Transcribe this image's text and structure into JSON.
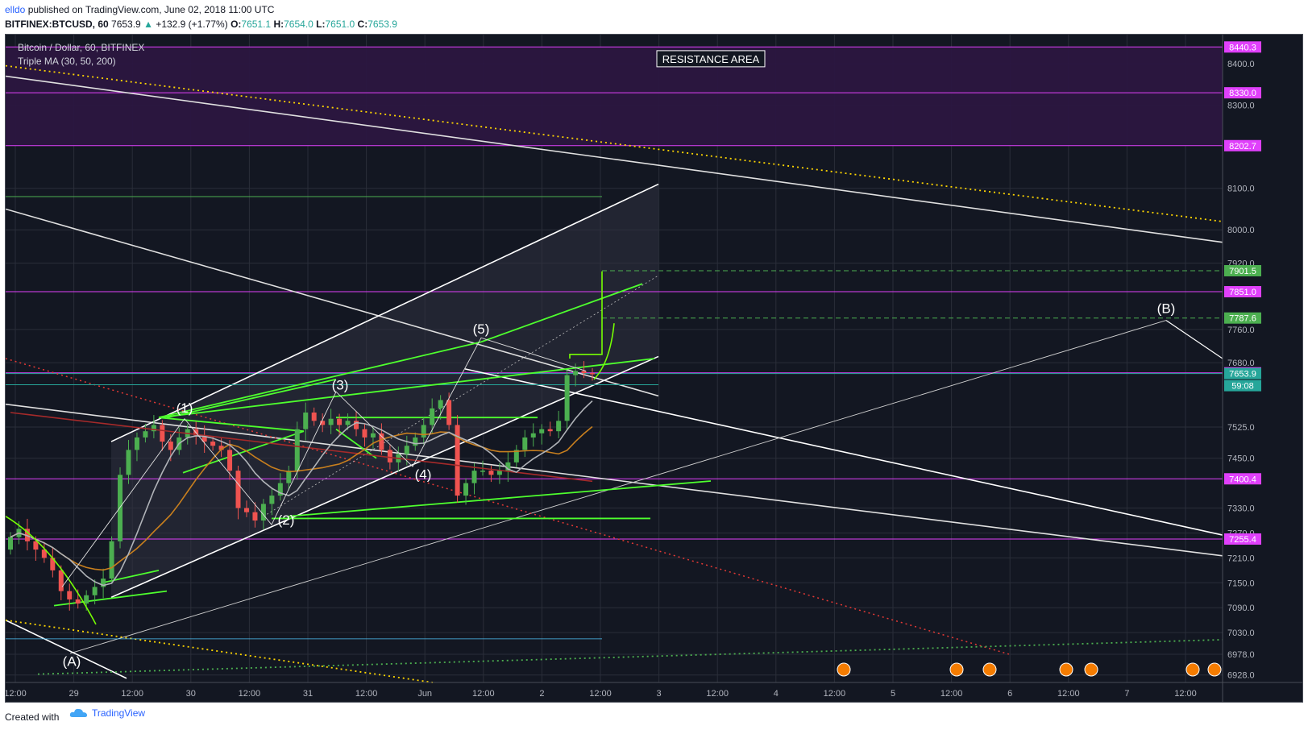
{
  "header": {
    "username": "elldo",
    "published": "published on TradingView.com, June 02, 2018 11:00 UTC",
    "symbol": "BITFINEX:BTCUSD, 60",
    "last": "7653.9",
    "change": "+132.9 (+1.77%)",
    "o_label": "O:",
    "o": "7651.1",
    "h_label": "H:",
    "h": "7654.0",
    "l_label": "L:",
    "l": "7651.0",
    "c_label": "C:",
    "c": "7653.9"
  },
  "legend": {
    "title": "Bitcoin / Dollar, 60, BITFINEX",
    "indicator": "Triple MA (30, 50, 200)"
  },
  "annotations": {
    "resistance": "RESISTANCE AREA",
    "wave_1": "(1)",
    "wave_2": "(2)",
    "wave_3": "(3)",
    "wave_4": "(4)",
    "wave_5": "(5)",
    "wave_A": "(A)",
    "wave_B": "(B)"
  },
  "footer": {
    "created": "Created with",
    "brand": "TradingView"
  },
  "chart_data": {
    "type": "candlestick",
    "title": "Bitcoin / Dollar, 60, BITFINEX",
    "ylim": [
      6910,
      8470
    ],
    "y_ticks": [
      8400,
      8300,
      8100,
      8000,
      7920,
      7760,
      7680,
      7525,
      7450,
      7330,
      7270,
      7210,
      7150,
      7090,
      7030,
      6978,
      6928
    ],
    "x_ticks": [
      "12:00",
      "29",
      "12:00",
      "30",
      "12:00",
      "31",
      "12:00",
      "Jun",
      "12:00",
      "2",
      "12:00",
      "3",
      "12:00",
      "4",
      "12:00",
      "5",
      "12:00",
      "6",
      "12:00",
      "7",
      "12:00"
    ],
    "price_labels": [
      {
        "value": 8440.3,
        "text": "8440.3",
        "color": "#e040fb"
      },
      {
        "value": 8330.0,
        "text": "8330.0",
        "color": "#e040fb"
      },
      {
        "value": 8202.7,
        "text": "8202.7",
        "color": "#e040fb"
      },
      {
        "value": 7901.5,
        "text": "7901.5",
        "color": "#4caf50"
      },
      {
        "value": 7851.0,
        "text": "7851.0",
        "color": "#e040fb"
      },
      {
        "value": 7787.6,
        "text": "7787.6",
        "color": "#4caf50"
      },
      {
        "value": 7655.6,
        "text": "7655.6",
        "color": "#e040fb"
      },
      {
        "value": 7653.9,
        "text": "7653.9",
        "color": "#26a69a"
      },
      {
        "value": 7400.4,
        "text": "7400.4",
        "color": "#e040fb"
      },
      {
        "value": 7255.4,
        "text": "7255.4",
        "color": "#e040fb"
      }
    ],
    "countdown": "59:08",
    "resistance_zone": [
      8202.7,
      8440.3
    ],
    "candles_close": [
      7260,
      7280,
      7250,
      7230,
      7210,
      7180,
      7130,
      7110,
      7100,
      7120,
      7140,
      7160,
      7250,
      7410,
      7470,
      7500,
      7515,
      7530,
      7490,
      7470,
      7500,
      7520,
      7505,
      7490,
      7480,
      7470,
      7420,
      7330,
      7320,
      7300,
      7340,
      7360,
      7390,
      7420,
      7520,
      7560,
      7540,
      7530,
      7545,
      7530,
      7540,
      7520,
      7500,
      7510,
      7470,
      7440,
      7460,
      7480,
      7500,
      7530,
      7570,
      7590,
      7530,
      7360,
      7390,
      7420,
      7420,
      7410,
      7420,
      7440,
      7470,
      7500,
      7510,
      7520,
      7515,
      7540,
      7650,
      7660,
      7655,
      7653.9
    ],
    "series": [
      {
        "name": "MA 30",
        "color": "#b0b3b8"
      },
      {
        "name": "MA 50",
        "color": "#c87f1e"
      },
      {
        "name": "MA 200",
        "color": "#a52a2a"
      }
    ],
    "colors": {
      "up": "#4caf50",
      "down": "#ef5350",
      "bg": "#131722",
      "magenta": "#e040fb",
      "green": "#76ff03"
    }
  }
}
